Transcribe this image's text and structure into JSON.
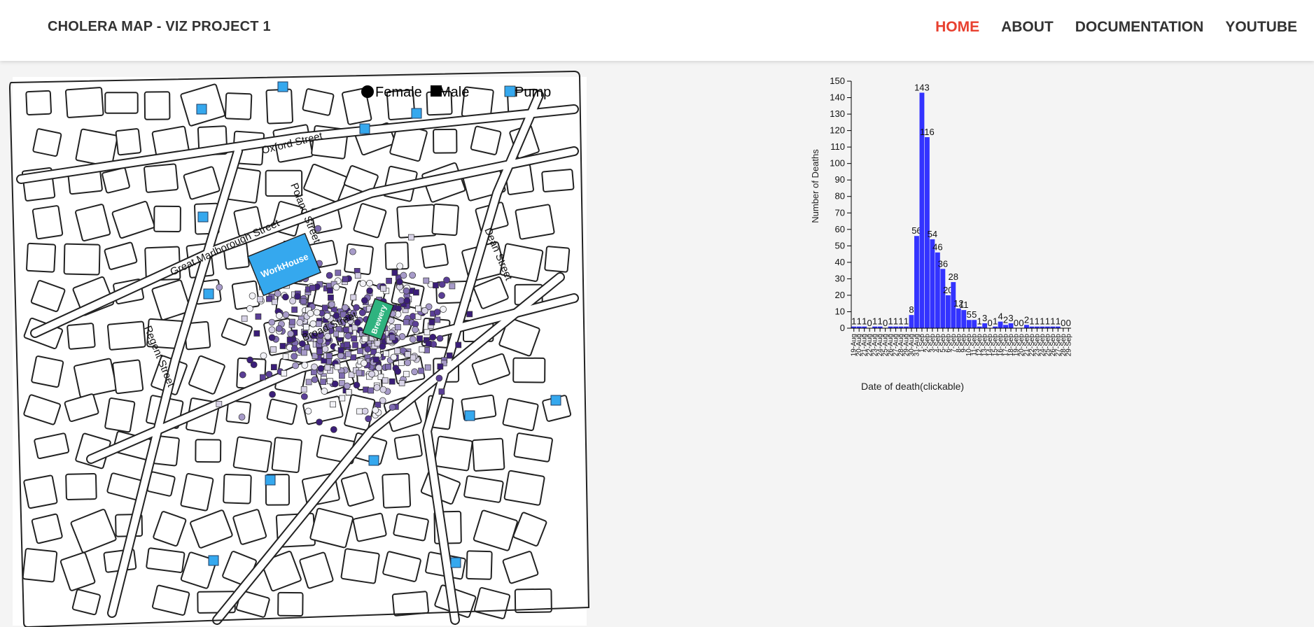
{
  "header": {
    "title": "CHOLERA MAP - VIZ PROJECT 1",
    "nav": [
      {
        "label": "HOME",
        "active": true
      },
      {
        "label": "ABOUT",
        "active": false
      },
      {
        "label": "DOCUMENTATION",
        "active": false
      },
      {
        "label": "YOUTUBE",
        "active": false
      }
    ]
  },
  "map": {
    "legend": [
      {
        "label": "Female",
        "shape": "circle",
        "color": "#000000"
      },
      {
        "label": "Male",
        "shape": "square",
        "color": "#000000"
      },
      {
        "label": "Pump",
        "shape": "square",
        "color": "#35a8ee"
      }
    ],
    "streets": [
      "Oxford Street",
      "Poland Street",
      "Great Marlborough Street",
      "Dean Street",
      "Broad Street",
      "Regent Street"
    ],
    "buildings": [
      {
        "label": "WorkHouse",
        "color": "#35a8ee"
      },
      {
        "label": "Brewery",
        "color": "#2fb37f"
      }
    ],
    "colors": {
      "female_fill_dark": "#4b2f86",
      "female_fill_light": "#e8e6f0",
      "pump": "#35a8ee"
    }
  },
  "chart_data": {
    "type": "bar",
    "color": "#3333ff",
    "ylabel": "Number of Deaths",
    "xlabel": "Date of death(clickable)",
    "ylim": [
      0,
      150
    ],
    "yticks": [
      0,
      10,
      20,
      30,
      40,
      50,
      60,
      70,
      80,
      90,
      100,
      110,
      120,
      130,
      140,
      150
    ],
    "categories": [
      "19-Aug",
      "20-Aug",
      "21-Aug",
      "22-Aug",
      "23-Aug",
      "24-Aug",
      "25-Aug",
      "26-Aug",
      "27-Aug",
      "28-Aug",
      "29-Aug",
      "30-Aug",
      "31-Aug",
      "1-Sep",
      "2-Sep",
      "3-Sep",
      "4-Sep",
      "5-Sep",
      "6-Sep",
      "7-Sep",
      "8-Sep",
      "9-Sep",
      "10-Sep",
      "11-Sep",
      "12-Sep",
      "13-Sep",
      "14-Sep",
      "15-Sep",
      "16-Sep",
      "17-Sep",
      "18-Sep",
      "19-Sep",
      "20-Sep",
      "21-Sep",
      "22-Sep",
      "23-Sep",
      "24-Sep",
      "25-Sep",
      "26-Sep",
      "27-Sep",
      "28-Sep",
      "29-Sep"
    ],
    "values": [
      1,
      1,
      1,
      0,
      1,
      1,
      0,
      1,
      1,
      1,
      1,
      8,
      56,
      143,
      116,
      54,
      46,
      36,
      20,
      28,
      12,
      11,
      5,
      5,
      1,
      3,
      0,
      1,
      4,
      2,
      3,
      0,
      0,
      2,
      1,
      1,
      1,
      1,
      1,
      1,
      0,
      0
    ]
  }
}
